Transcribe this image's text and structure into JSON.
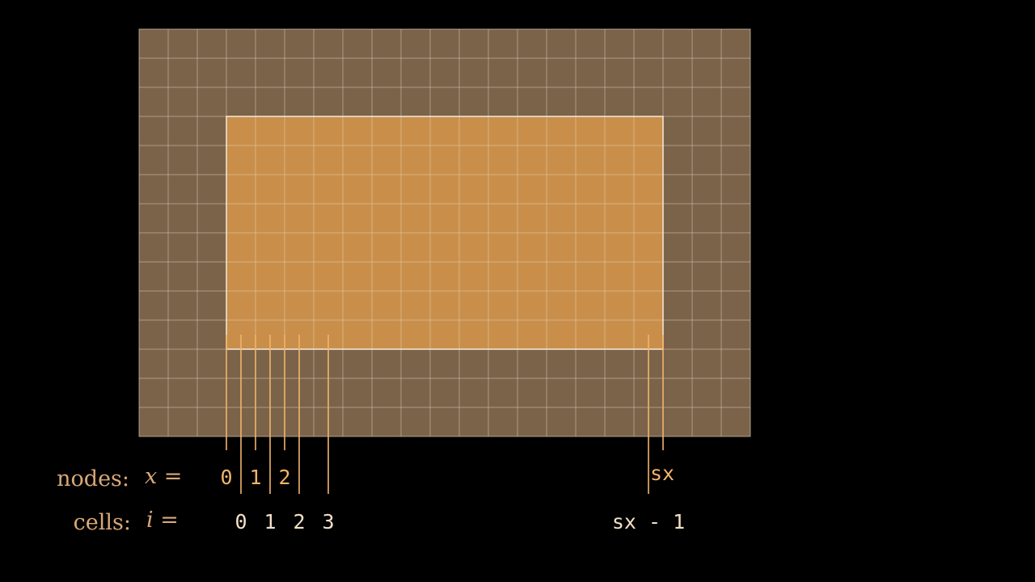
{
  "labels": {
    "nodes_word": "nodes:",
    "nodes_eq": "x =",
    "cells_word": "cells:",
    "cells_eq": "i ="
  },
  "node_indices": [
    "0",
    "1",
    "2"
  ],
  "node_last": "sx",
  "cell_indices": [
    "0",
    "1",
    "2",
    "3"
  ],
  "cell_last": "sx - 1",
  "colors": {
    "background": "#000000",
    "outer_fill": "#7b6349",
    "inner_fill": "#c98f4a",
    "grid_line": "#e9dcc8",
    "inner_border": "#f4ead9",
    "accent": "#f2b46b",
    "label_tan": "#d8a878",
    "label_light": "#f4e0c6"
  }
}
